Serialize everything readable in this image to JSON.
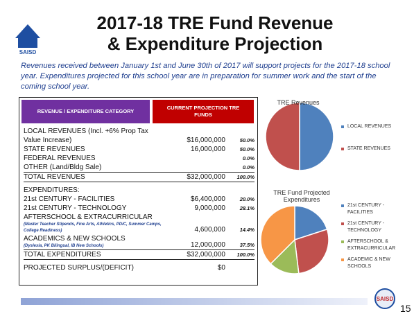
{
  "header": {
    "title_line1": "2017-18 TRE Fund Revenue",
    "title_line2": "& Expenditure Projection",
    "logo": "SAISD"
  },
  "intro": "Revenues received between January 1st and June 30th of 2017 will support projects for the 2017-18 school year. Expenditures projected for this school year are in preparation for summer work and the start of the coming school year.",
  "table": {
    "header": [
      "REVENUE / EXPENDITURE CATEGORY",
      "CURRENT PROJECTION TRE FUNDS"
    ],
    "rows": [
      {
        "label": "LOCAL REVENUES (Incl. +6% Prop Tax",
        "label2": "Value Increase)",
        "amount": "$16,000,000",
        "pct": "50.0%"
      },
      {
        "label": "STATE REVENUES",
        "amount": "16,000,000",
        "pct": "50.0%"
      },
      {
        "label": "FEDERAL REVENUES",
        "pct": "0.0%"
      },
      {
        "label": "OTHER (Land/Bldg Sale)",
        "pct": "0.0%"
      },
      {
        "label": "TOTAL REVENUES",
        "amount": "$32,000,000",
        "pct": "100.0%"
      },
      {
        "label": "EXPENDITURES:"
      },
      {
        "label": "21st CENTURY - FACILITIES",
        "amount": "$6,400,000",
        "pct": "20.0%"
      },
      {
        "label": "21st CENTURY - TECHNOLOGY",
        "amount": "9,000,000",
        "pct": "28.1%"
      },
      {
        "label": "AFTERSCHOOL & EXTRACURRICULAR",
        "note": "(Master Teacher Stipends, Fine Arts, Athletics, PD/C, Summer Camps, College Readiness)",
        "amount": "4,600,000",
        "pct": "14.4%"
      },
      {
        "label": "ACADEMICS & NEW SCHOOLS",
        "note": "(Dyslexia, PK Bilingual, IB New Schools)",
        "amount": "12,000,000",
        "pct": "37.5%"
      },
      {
        "label": "TOTAL EXPENDITURES",
        "amount": "$32,000,000",
        "pct": "100.0%"
      },
      {
        "label": "PROJECTED SURPLUS/(DEFICIT)",
        "amount": "$0"
      }
    ]
  },
  "chart_data": [
    {
      "type": "pie",
      "title": "TRE Revenues",
      "categories": [
        "LOCAL REVENUES",
        "STATE REVENUES"
      ],
      "values": [
        50,
        50
      ],
      "colors": [
        "#4f81bd",
        "#c0504d"
      ]
    },
    {
      "type": "pie",
      "title": "TRE Fund Projected Expenditures",
      "categories": [
        "21st CENTURY - FACILITIES",
        "21st CENTURY - TECHNOLOGY",
        "AFTERSCHOOL & EXTRACURRICULAR",
        "ACADEMIC & NEW SCHOOLS"
      ],
      "values": [
        20,
        28.1,
        14.4,
        37.5
      ],
      "colors": [
        "#4f81bd",
        "#c0504d",
        "#9bbb59",
        "#f79646"
      ]
    }
  ],
  "footer": {
    "page": "15",
    "logo": "SAISD"
  }
}
